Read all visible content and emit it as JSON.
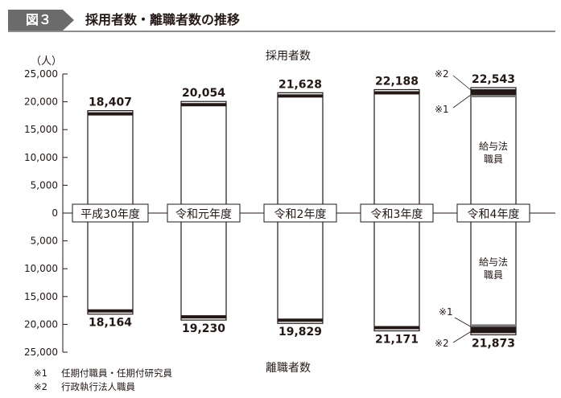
{
  "header": {
    "figure_label": "図３",
    "title": "採用者数・離職者数の推移"
  },
  "chart_data": {
    "type": "bar",
    "unit_label": "（人）",
    "top_label": "採用者数",
    "bottom_label": "離職者数",
    "categories": [
      "平成30年度",
      "令和元年度",
      "令和2年度",
      "令和3年度",
      "令和4年度"
    ],
    "y_ticks": [
      "25,000",
      "20,000",
      "15,000",
      "10,000",
      "5,000",
      "0",
      "5,000",
      "10,000",
      "15,000",
      "20,000",
      "25,000"
    ],
    "ylim": [
      -25000,
      25000
    ],
    "series": [
      {
        "name": "採用者数",
        "values": [
          18407,
          20054,
          21628,
          22188,
          22543
        ],
        "labels": [
          "18,407",
          "20,054",
          "21,628",
          "22,188",
          "22,543"
        ]
      },
      {
        "name": "離職者数",
        "values": [
          18164,
          19230,
          19829,
          21171,
          21873
        ],
        "labels": [
          "18,164",
          "19,230",
          "19,829",
          "21,171",
          "21,873"
        ]
      }
    ],
    "annotations": {
      "main_segment": "給与法職員",
      "mark1": "※1",
      "mark2": "※2"
    }
  },
  "footnotes": [
    {
      "mark": "※1",
      "text": "任期付職員・任期付研究員"
    },
    {
      "mark": "※2",
      "text": "行政執行法人職員"
    }
  ]
}
